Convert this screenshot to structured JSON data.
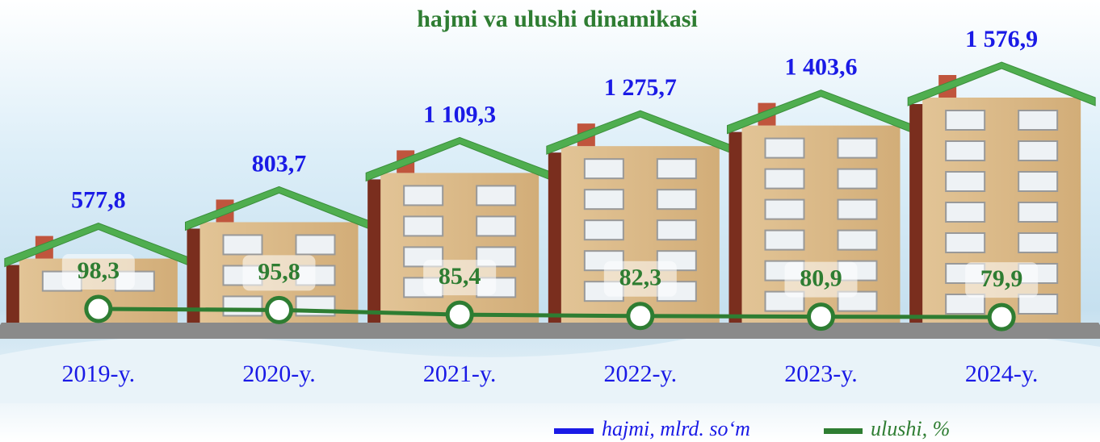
{
  "chart_data": {
    "type": "house-bar-line",
    "title": "hajmi va ulushi dinamikasi",
    "categories": [
      "2019-y.",
      "2020-y.",
      "2021-y.",
      "2022-y.",
      "2023-y.",
      "2024-y."
    ],
    "series": [
      {
        "name": "hajmi, mlrd. so‘m",
        "color": "#1a1ae6",
        "values": [
          577.8,
          803.7,
          1109.3,
          1275.7,
          1403.6,
          1576.9
        ],
        "value_labels": [
          "577,8",
          "803,7",
          "1 109,3",
          "1 275,7",
          "1 403,6",
          "1 576,9"
        ]
      },
      {
        "name": "ulushi, %",
        "color": "#2e7d32",
        "values": [
          98.3,
          95.8,
          85.4,
          82.3,
          80.9,
          79.9
        ],
        "value_labels": [
          "98,3",
          "95,8",
          "85,4",
          "82,3",
          "80,9",
          "79,9"
        ]
      }
    ]
  }
}
